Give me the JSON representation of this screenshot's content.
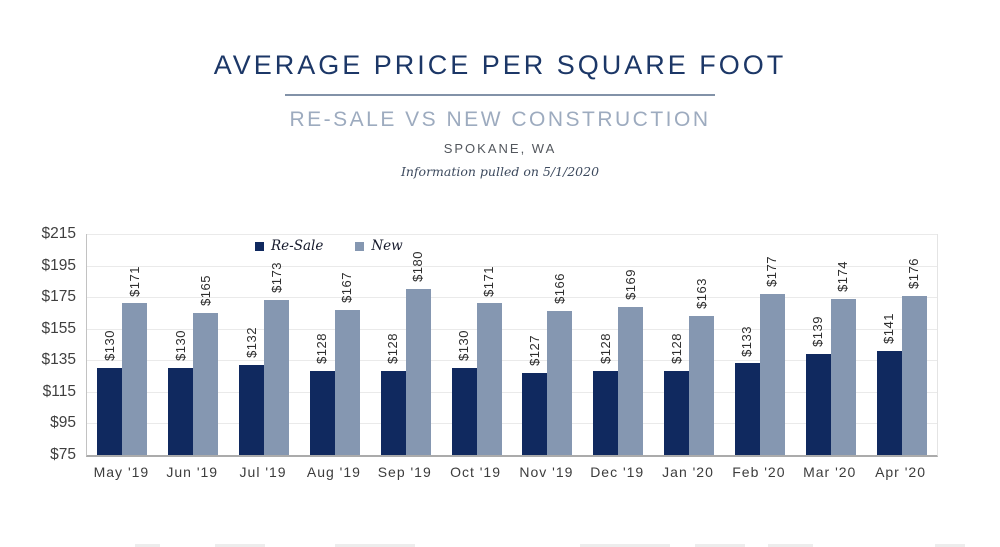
{
  "header": {
    "title": "AVERAGE PRICE PER SQUARE FOOT",
    "subtitle": "RE-SALE VS NEW CONSTRUCTION",
    "location": "SPOKANE, WA",
    "note": "Information pulled on 5/1/2020"
  },
  "chart_data": {
    "type": "bar",
    "title": "Average Price Per Square Foot — Re-Sale vs New Construction, Spokane, WA",
    "categories": [
      "May '19",
      "Jun '19",
      "Jul '19",
      "Aug '19",
      "Sep '19",
      "Oct '19",
      "Nov '19",
      "Dec '19",
      "Jan '20",
      "Feb '20",
      "Mar '20",
      "Apr '20"
    ],
    "series": [
      {
        "name": "Re-Sale",
        "color": "#10295f",
        "values": [
          130,
          130,
          132,
          128,
          128,
          130,
          127,
          128,
          128,
          133,
          139,
          141
        ]
      },
      {
        "name": "New",
        "color": "#8597b1",
        "values": [
          171,
          165,
          173,
          167,
          180,
          171,
          166,
          169,
          163,
          177,
          174,
          176
        ]
      }
    ],
    "xlabel": "",
    "ylabel": "",
    "ylim": [
      75,
      215
    ],
    "ytick_values": [
      215,
      195,
      175,
      155,
      135,
      115,
      95,
      75
    ],
    "ytick_labels": [
      "$215",
      "$195",
      "$175",
      "$155",
      "$135",
      "$115",
      "$95",
      "$75"
    ],
    "value_prefix": "$",
    "grid": true,
    "legend_position": "top-left-inside"
  },
  "colors": {
    "title_navy": "#1c3767",
    "subtitle_gray_blue": "#9dabbf",
    "divider": "#8292a8",
    "resale_bar": "#10295f",
    "new_bar": "#8597b1",
    "axis_text": "#3f3f3f",
    "gridline": "#eaeaea"
  }
}
